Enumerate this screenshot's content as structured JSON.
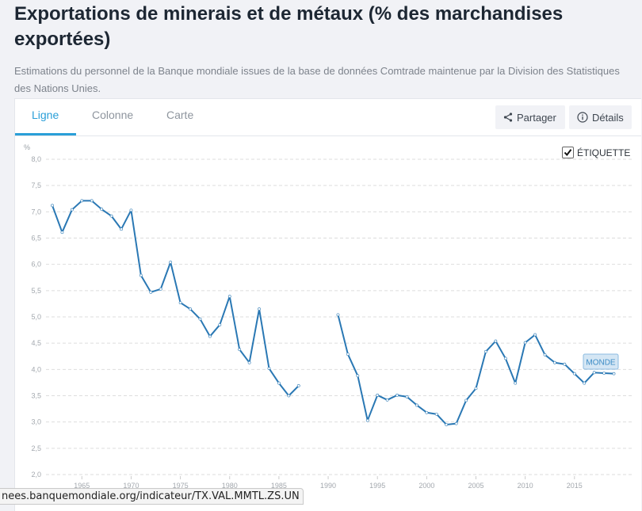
{
  "page": {
    "title": "Exportations de minerais et de métaux (% des marchandises exportées)",
    "subtitle": "Estimations du personnel de la Banque mondiale issues de la base de données Comtrade maintenue par la Division des Statistiques des Nations Unies."
  },
  "tabs": [
    {
      "label": "Ligne",
      "active": true
    },
    {
      "label": "Colonne",
      "active": false
    },
    {
      "label": "Carte",
      "active": false
    }
  ],
  "toolbar": {
    "share_label": "Partager",
    "share_icon": "share-icon",
    "details_label": "Détails",
    "details_icon": "info-icon"
  },
  "label_toggle": {
    "label": "ÉTIQUETTE",
    "checked": true
  },
  "status_url": "nees.banquemondiale.org/indicateur/TX.VAL.MMTL.ZS.UN",
  "colors": {
    "line": "#2a78b4",
    "accent": "#2a9fd8",
    "label_bg": "#d4e6f4",
    "label_border": "#8bbbe0"
  },
  "chart_data": {
    "type": "line",
    "title": "Exportations de minerais et de métaux (% des marchandises exportées)",
    "xlabel": "",
    "ylabel": "%",
    "ylim": [
      2.0,
      8.0
    ],
    "xlim": [
      1961,
      2020
    ],
    "yticks": [
      "2,0",
      "2,5",
      "3,0",
      "3,5",
      "4,0",
      "4,5",
      "5,0",
      "5,5",
      "6,0",
      "6,5",
      "7,0",
      "7,5",
      "8,0"
    ],
    "ytick_values": [
      2.0,
      2.5,
      3.0,
      3.5,
      4.0,
      4.5,
      5.0,
      5.5,
      6.0,
      6.5,
      7.0,
      7.5,
      8.0
    ],
    "xticks": [
      "1965",
      "1970",
      "1975",
      "1980",
      "1985",
      "1990",
      "1995",
      "2000",
      "2005",
      "2010",
      "2015"
    ],
    "xtick_values": [
      1965,
      1970,
      1975,
      1980,
      1985,
      1990,
      1995,
      2000,
      2005,
      2010,
      2015
    ],
    "grid": true,
    "series": [
      {
        "name": "MONDE",
        "x": [
          1962,
          1963,
          1964,
          1965,
          1966,
          1967,
          1968,
          1969,
          1970,
          1971,
          1972,
          1973,
          1974,
          1975,
          1976,
          1977,
          1978,
          1979,
          1980,
          1981,
          1982,
          1983,
          1984,
          1985,
          1986,
          1987,
          1988,
          1989,
          1990,
          1991,
          1992,
          1993,
          1994,
          1995,
          1996,
          1997,
          1998,
          1999,
          2000,
          2001,
          2002,
          2003,
          2004,
          2005,
          2006,
          2007,
          2008,
          2009,
          2010,
          2011,
          2012,
          2013,
          2014,
          2015,
          2016,
          2017,
          2018,
          2019
        ],
        "values": [
          7.12,
          6.61,
          7.04,
          7.21,
          7.21,
          7.05,
          6.92,
          6.67,
          7.03,
          5.79,
          5.47,
          5.53,
          6.04,
          5.27,
          5.15,
          4.96,
          4.63,
          4.85,
          5.39,
          4.38,
          4.13,
          5.15,
          4.02,
          3.74,
          3.5,
          3.69,
          null,
          null,
          null,
          5.04,
          4.29,
          3.88,
          3.03,
          3.51,
          3.42,
          3.51,
          3.48,
          3.32,
          3.18,
          3.15,
          2.95,
          2.97,
          3.41,
          3.64,
          4.34,
          4.54,
          4.21,
          3.74,
          4.51,
          4.66,
          4.28,
          4.13,
          4.1,
          3.92,
          3.74,
          3.94,
          3.93,
          3.92
        ]
      }
    ]
  }
}
